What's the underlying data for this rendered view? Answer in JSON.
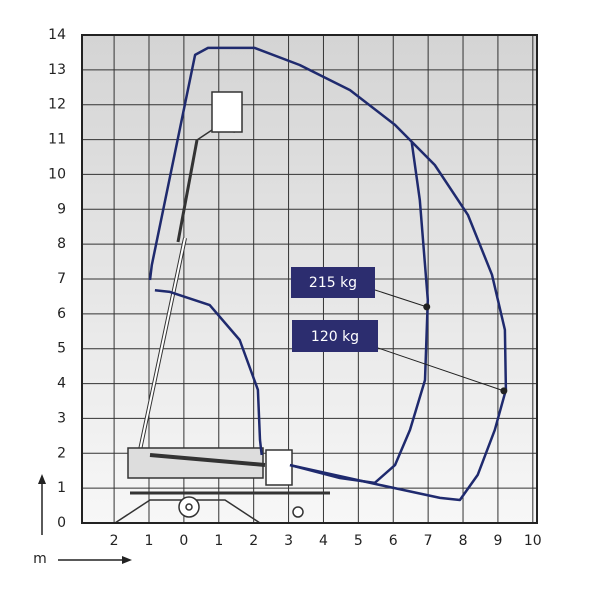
{
  "chart_data": {
    "type": "range",
    "axis_label": "m",
    "xlim": [
      -2.92,
      10.12
    ],
    "ylim": [
      0,
      14
    ],
    "xticks": [
      {
        "value": -2,
        "label": "2"
      },
      {
        "value": -1,
        "label": "1"
      },
      0,
      1,
      2,
      3,
      4,
      5,
      6,
      7,
      8,
      9,
      10
    ],
    "yticks": [
      0,
      1,
      2,
      3,
      4,
      5,
      6,
      7,
      8,
      9,
      10,
      11,
      12,
      13,
      14
    ],
    "grid": true,
    "series": [
      {
        "color": "#1f2a6e",
        "x": [
          -0.97,
          -0.92,
          0.32,
          0.69,
          2.03,
          3.32,
          4.76,
          6.05,
          7.19,
          8.14,
          8.83,
          9.2,
          9.23,
          8.91,
          8.42,
          7.91,
          7.34,
          5.62,
          3.04
        ],
        "y": [
          6.97,
          7.4,
          13.43,
          13.63,
          13.63,
          13.14,
          12.42,
          11.42,
          10.27,
          8.84,
          7.12,
          5.54,
          3.82,
          2.67,
          1.38,
          0.66,
          0.72,
          1.09,
          1.66
        ]
      },
      {
        "color": "#1f2a6e",
        "x": [
          6.53,
          6.76,
          6.99,
          6.91,
          6.48,
          6.05,
          5.47,
          4.47,
          3.04
        ],
        "y": [
          10.93,
          9.27,
          6.4,
          4.1,
          2.67,
          1.66,
          1.15,
          1.29,
          1.66
        ]
      },
      {
        "color": "#1f2a6e",
        "x": [
          -0.83,
          -0.4,
          0.74,
          1.6,
          2.12,
          2.18,
          2.23
        ],
        "y": [
          6.68,
          6.63,
          6.25,
          5.25,
          3.82,
          2.38,
          1.95
        ]
      }
    ],
    "annotations": [
      {
        "text": "215 kg",
        "x": 6.96,
        "y": 6.2
      },
      {
        "text": "120 kg",
        "x": 9.17,
        "y": 3.79
      }
    ]
  }
}
